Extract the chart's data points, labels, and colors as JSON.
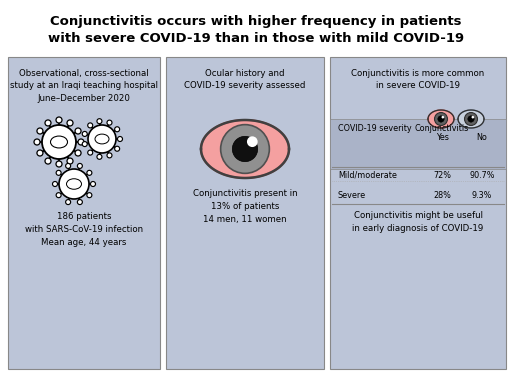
{
  "title_line1": "Conjunctivitis occurs with higher frequency in patients",
  "title_line2": "with severe COVID-19 than in those with mild COVID-19",
  "bg_color": "#ffffff",
  "panel_color": "#bcc5d8",
  "panel_color_dark": "#aab3c8",
  "left_panel": {
    "top_text": "Observational, cross-sectional\nstudy at an Iraqi teaching hospital\nJune–December 2020",
    "bottom_text": "186 patients\nwith SARS-CoV-19 infection\nMean age, 44 years"
  },
  "mid_panel": {
    "top_text": "Ocular history and\nCOVID-19 severity assessed",
    "bottom_text": "Conjunctivitis present in\n13% of patients\n14 men, 11 women"
  },
  "right_panel": {
    "top_text": "Conjunctivitis is more common\nin severe COVID-19",
    "col1_header": "COVID-19 severity",
    "col2_header": "Conjunctivitis",
    "col2b_header": "Yes",
    "col3_header": "No",
    "rows": [
      [
        "Mild/moderate",
        "72%",
        "90.7%"
      ],
      [
        "Severe",
        "28%",
        "9.3%"
      ]
    ],
    "bottom_text": "Conjunctivitis might be useful\nin early diagnosis of COVID-19"
  }
}
